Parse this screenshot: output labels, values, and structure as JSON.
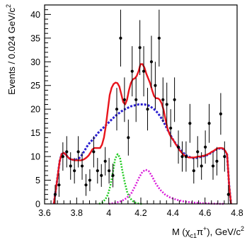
{
  "chart_data": {
    "type": "line",
    "xlabel": "M (χ<sub>c1</sub>π⁺), GeV/c²",
    "ylabel": "Events / 0.024 GeV/c²",
    "xlabel_parts": {
      "pre": "M (χ",
      "sub": "c1",
      "mid": "π",
      "sup": "+",
      "post": "), GeV/c",
      "sup2": "2"
    },
    "ylabel_parts": {
      "main": "Events / 0.024 GeV/c",
      "sup": "2"
    },
    "xlim": [
      3.6,
      4.8
    ],
    "ylim": [
      0,
      42
    ],
    "x_ticks": [
      3.6,
      3.8,
      4.0,
      4.2,
      4.4,
      4.6,
      4.8
    ],
    "x_tick_labels": [
      "3.6",
      "3.8",
      "4",
      "4.2",
      "4.4",
      "4.6",
      "4.8"
    ],
    "y_ticks": [
      0,
      5,
      10,
      15,
      20,
      25,
      30,
      35,
      40
    ],
    "y_tick_labels": [
      "0",
      "5",
      "10",
      "15",
      "20",
      "25",
      "30",
      "35",
      "40"
    ],
    "grid": false,
    "data_points": {
      "name": "data",
      "color": "#000000",
      "x": [
        3.666,
        3.69,
        3.714,
        3.738,
        3.762,
        3.786,
        3.81,
        3.834,
        3.858,
        3.882,
        3.906,
        3.93,
        3.954,
        3.978,
        4.002,
        4.026,
        4.05,
        4.074,
        4.098,
        4.122,
        4.146,
        4.17,
        4.194,
        4.218,
        4.242,
        4.266,
        4.29,
        4.314,
        4.338,
        4.362,
        4.386,
        4.41,
        4.434,
        4.458,
        4.482,
        4.506,
        4.53,
        4.554,
        4.578,
        4.602,
        4.626,
        4.65,
        4.674,
        4.698,
        4.722,
        4.746
      ],
      "y": [
        2,
        4,
        10,
        11,
        8,
        7,
        11,
        8,
        4,
        5,
        11,
        7,
        6,
        9,
        7,
        6,
        20,
        35,
        22,
        14,
        28,
        22,
        33,
        28,
        20,
        30,
        25,
        35,
        22,
        21,
        16,
        22,
        12,
        10,
        10,
        17,
        7,
        11,
        8,
        12,
        17,
        8,
        9,
        19,
        10,
        2
      ],
      "err": [
        2,
        2.5,
        3,
        3.3,
        2.9,
        2.7,
        3.3,
        2.9,
        2.3,
        2.3,
        3.3,
        2.7,
        2.4,
        3,
        2.7,
        2.5,
        4.5,
        6,
        4.7,
        3.8,
        5.3,
        4.7,
        5.8,
        5.3,
        4.5,
        5.5,
        5,
        6,
        4.7,
        4.6,
        4,
        4.7,
        3.5,
        3.2,
        3.2,
        4.1,
        2.7,
        3.3,
        2.9,
        3.5,
        4.1,
        2.9,
        3,
        4.4,
        3.2,
        2
      ]
    },
    "series": [
      {
        "name": "total fit",
        "color": "#e8141c",
        "style": "solid",
        "x": [
          3.658,
          3.67,
          3.682,
          3.694,
          3.706,
          3.718,
          3.73,
          3.742,
          3.754,
          3.766,
          3.778,
          3.79,
          3.802,
          3.814,
          3.826,
          3.838,
          3.85,
          3.862,
          3.874,
          3.886,
          3.898,
          3.91,
          3.922,
          3.934,
          3.946,
          3.958,
          3.97,
          3.982,
          3.994,
          4.006,
          4.018,
          4.03,
          4.042,
          4.054,
          4.066,
          4.078,
          4.09,
          4.102,
          4.114,
          4.126,
          4.138,
          4.15,
          4.162,
          4.174,
          4.186,
          4.198,
          4.21,
          4.222,
          4.234,
          4.246,
          4.258,
          4.27,
          4.282,
          4.294,
          4.306,
          4.318,
          4.33,
          4.342,
          4.354,
          4.366,
          4.378,
          4.39,
          4.402,
          4.414,
          4.426,
          4.438,
          4.45,
          4.462,
          4.474,
          4.486,
          4.498,
          4.51,
          4.522,
          4.534,
          4.546,
          4.558,
          4.57,
          4.582,
          4.594,
          4.606,
          4.618,
          4.63,
          4.642,
          4.654,
          4.666,
          4.678,
          4.69,
          4.702,
          4.714,
          4.726,
          4.738,
          4.75,
          4.762
        ],
        "y": [
          0,
          3,
          6,
          9,
          10.5,
          10.8,
          10.5,
          10,
          9.6,
          9.4,
          9.3,
          9.2,
          9.2,
          9.2,
          9.2,
          9.3,
          9.5,
          9.8,
          10.2,
          10.8,
          11.5,
          11.8,
          11.8,
          11.8,
          11.8,
          12.5,
          14,
          16.5,
          19.8,
          23,
          24.5,
          25.3,
          25.6,
          25.5,
          24.8,
          23.2,
          21.5,
          21,
          22,
          24,
          25.5,
          26.3,
          26.5,
          27,
          28,
          29.5,
          29.5,
          28.8,
          27.5,
          26.5,
          25.5,
          24,
          22.8,
          22.3,
          22.3,
          22,
          21.2,
          19.8,
          17.8,
          16,
          14.8,
          14,
          13.5,
          12.8,
          12.2,
          11.5,
          11,
          10.5,
          10.2,
          10,
          9.8,
          9.8,
          9.8,
          9.8,
          9.9,
          10,
          10,
          10.1,
          10.2,
          10.3,
          10.5,
          10.7,
          11,
          11.2,
          11.5,
          11.7,
          11.8,
          11.8,
          11.7,
          11.2,
          10.5,
          4,
          0
        ]
      },
      {
        "name": "background",
        "color": "#2b1fd0",
        "style": "dashed",
        "x": [
          3.658,
          3.67,
          3.682,
          3.694,
          3.706,
          3.718,
          3.73,
          3.742,
          3.754,
          3.766,
          3.778,
          3.79,
          3.802,
          3.814,
          3.826,
          3.838,
          3.85,
          3.862,
          3.874,
          3.886,
          3.898,
          3.91,
          3.922,
          3.934,
          3.946,
          3.958,
          3.97,
          3.982,
          3.994,
          4.006,
          4.018,
          4.03,
          4.042,
          4.054,
          4.066,
          4.078,
          4.09,
          4.102,
          4.114,
          4.126,
          4.138,
          4.15,
          4.162,
          4.174,
          4.186,
          4.198,
          4.21,
          4.222,
          4.234,
          4.246,
          4.258,
          4.27,
          4.282,
          4.294,
          4.306,
          4.318,
          4.33,
          4.342,
          4.354,
          4.366,
          4.378,
          4.39,
          4.402,
          4.414,
          4.426,
          4.438,
          4.45,
          4.462,
          4.474,
          4.486,
          4.498,
          4.51,
          4.522,
          4.534,
          4.546,
          4.558,
          4.57,
          4.582,
          4.594,
          4.606,
          4.618,
          4.63,
          4.642,
          4.654,
          4.666,
          4.678,
          4.69,
          4.702,
          4.714,
          4.726,
          4.738,
          4.75,
          4.762
        ],
        "y": [
          0,
          3,
          6,
          9,
          10.5,
          10.8,
          10.5,
          10,
          9.6,
          9.4,
          9.3,
          9.3,
          9.4,
          9.6,
          10,
          10.6,
          11.3,
          12,
          12.6,
          13.1,
          13.5,
          14,
          14.5,
          15,
          15.4,
          15.8,
          16.2,
          16.6,
          17,
          17.4,
          17.8,
          18.2,
          18.6,
          18.9,
          19.2,
          19.5,
          19.8,
          20,
          20.2,
          20.4,
          20.6,
          20.7,
          20.8,
          20.9,
          21,
          21,
          21,
          21,
          20.9,
          20.8,
          20.6,
          20.3,
          20,
          19.6,
          19.2,
          18.6,
          18,
          17.3,
          16.5,
          15.7,
          15,
          14.2,
          13.5,
          12.9,
          12.3,
          11.8,
          11.3,
          10.9,
          10.5,
          10.2,
          10,
          9.8,
          9.7,
          9.7,
          9.7,
          9.8,
          9.9,
          10,
          10.1,
          10.2,
          10.4,
          10.6,
          10.9,
          11.1,
          11.4,
          11.6,
          11.7,
          11.7,
          11.6,
          11.1,
          10.4,
          4,
          0
        ]
      },
      {
        "name": "Z1 component",
        "color": "#22cc22",
        "style": "dotted",
        "x": [
          3.94,
          3.96,
          3.98,
          3.995,
          4.01,
          4.025,
          4.04,
          4.055,
          4.07,
          4.085,
          4.1,
          4.115,
          4.13,
          4.15,
          4.17,
          4.19,
          4.21
        ],
        "y": [
          0,
          0.3,
          1,
          2,
          3.8,
          6.5,
          9.5,
          10.5,
          9.8,
          7,
          4.5,
          2.5,
          1.3,
          0.6,
          0.2,
          0.05,
          0
        ]
      },
      {
        "name": "Z2 component",
        "color": "#d91ad9",
        "style": "dotted",
        "x": [
          4.0,
          4.04,
          4.08,
          4.11,
          4.14,
          4.165,
          4.19,
          4.21,
          4.23,
          4.25,
          4.27,
          4.295,
          4.32,
          4.35,
          4.38,
          4.42,
          4.47,
          4.52,
          4.58,
          4.65,
          4.72
        ],
        "y": [
          0,
          0.2,
          0.6,
          1.2,
          2.2,
          3.8,
          5.6,
          6.8,
          7.2,
          6.9,
          5.8,
          4.2,
          3,
          2,
          1.4,
          0.9,
          0.5,
          0.3,
          0.15,
          0.05,
          0
        ]
      }
    ]
  }
}
